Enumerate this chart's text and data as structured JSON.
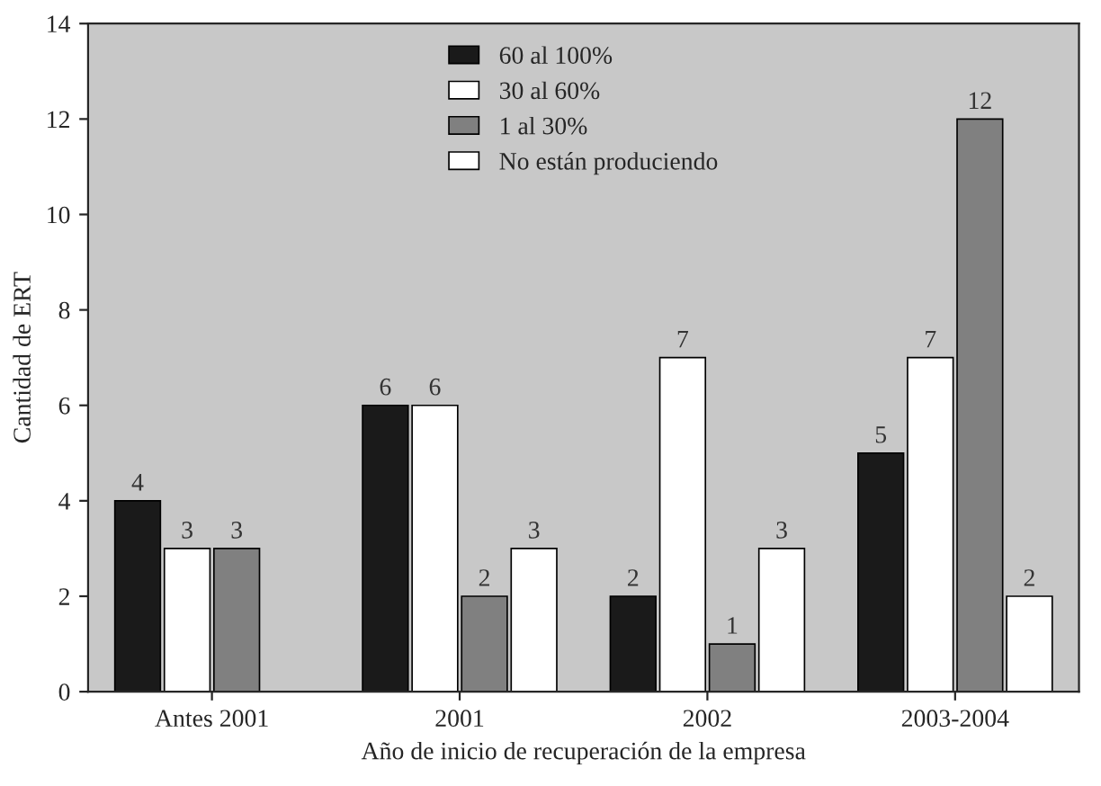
{
  "chart_data": {
    "type": "bar",
    "xlabel": "Año de inicio de recuperación de la empresa",
    "ylabel": "Cantidad de ERT",
    "categories": [
      "Antes 2001",
      "2001",
      "2002",
      "2003-2004"
    ],
    "series": [
      {
        "name": "60 al 100%",
        "color": "#1a1a1a",
        "values": [
          4,
          6,
          2,
          5
        ]
      },
      {
        "name": "30 al 60%",
        "color": "#ffffff",
        "values": [
          3,
          6,
          7,
          7
        ]
      },
      {
        "name": "1 al 30%",
        "color": "#808080",
        "values": [
          3,
          2,
          1,
          12
        ]
      },
      {
        "name": "No están produciendo",
        "color": "#ffffff",
        "values": [
          null,
          3,
          3,
          2
        ]
      }
    ],
    "ylim": [
      0,
      14
    ],
    "yticks": [
      0,
      2,
      4,
      6,
      8,
      10,
      12,
      14
    ],
    "data_labels": true,
    "legend": "top"
  }
}
